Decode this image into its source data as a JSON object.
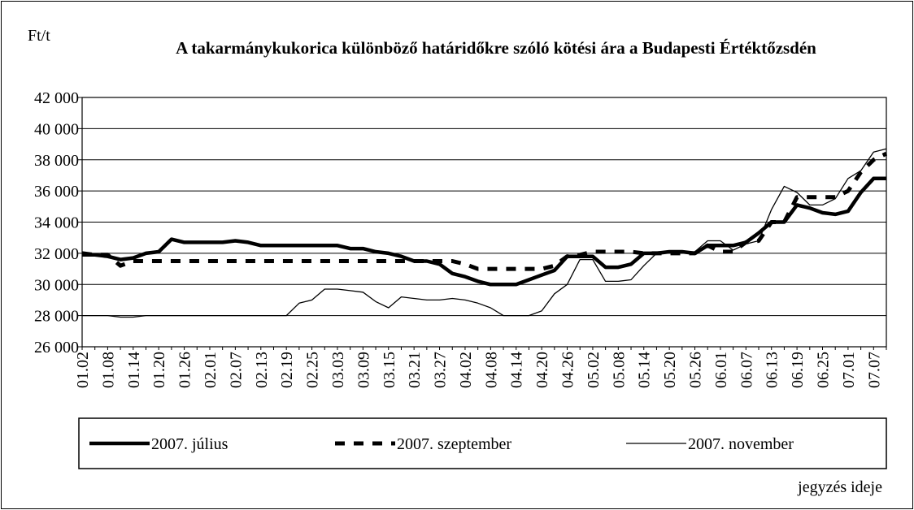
{
  "chart_data": {
    "type": "line",
    "title": "A takarmánykukorica különböző határidőkre szóló kötési ára a Budapesti Értéktőzsdén",
    "y_label": "Ft/t",
    "x_label": "jegyzés ideje",
    "categories": [
      "01.02",
      null,
      "01.08",
      null,
      "01.14",
      null,
      "01.20",
      null,
      "01.26",
      null,
      "02.01",
      null,
      "02.07",
      null,
      "02.13",
      null,
      "02.19",
      null,
      "02.25",
      null,
      "03.03",
      null,
      "03.09",
      null,
      "03.15",
      null,
      "03.21",
      null,
      "03.27",
      null,
      "04.02",
      null,
      "04.08",
      null,
      "04.14",
      null,
      "04.20",
      null,
      "04.26",
      null,
      "05.02",
      null,
      "05.08",
      null,
      "05.14",
      null,
      "05.20",
      null,
      "05.26",
      null,
      "06.01",
      null,
      "06.07",
      null,
      "06.13",
      null,
      "06.19",
      null,
      "06.25",
      null,
      "07.01",
      null,
      "07.07",
      null
    ],
    "series": [
      {
        "name": "2007. július",
        "color": "#000000",
        "style": "thick",
        "values": [
          31900,
          31900,
          31800,
          31600,
          31700,
          32000,
          32100,
          32900,
          32700,
          32700,
          32700,
          32700,
          32800,
          32700,
          32500,
          32500,
          32500,
          32500,
          32500,
          32500,
          32500,
          32300,
          32300,
          32100,
          32000,
          31800,
          31500,
          31500,
          31300,
          30700,
          30500,
          30200,
          30000,
          30000,
          30000,
          30300,
          30600,
          30900,
          31800,
          31800,
          31800,
          31100,
          31100,
          31300,
          32000,
          32000,
          32100,
          32100,
          32000,
          32500,
          32500,
          32500,
          32700,
          33300,
          34000,
          34000,
          35100,
          34900,
          34600,
          34500,
          34700,
          35900,
          36800,
          36800
        ]
      },
      {
        "name": "2007. szeptember",
        "color": "#000000",
        "style": "dashed",
        "values": [
          32000,
          31900,
          31900,
          31200,
          31500,
          31500,
          31500,
          31500,
          31500,
          31500,
          31500,
          31500,
          31500,
          31500,
          31500,
          31500,
          31500,
          31500,
          31500,
          31500,
          31500,
          31500,
          31500,
          31500,
          31500,
          31500,
          31500,
          31500,
          31500,
          31500,
          31300,
          31000,
          31000,
          31000,
          31000,
          31000,
          31000,
          31200,
          31800,
          31900,
          32100,
          32100,
          32100,
          32100,
          32000,
          32000,
          32000,
          32000,
          32000,
          32500,
          32100,
          32100,
          32700,
          32800,
          34000,
          34000,
          35600,
          35600,
          35600,
          35600,
          36000,
          37200,
          38000,
          38400
        ]
      },
      {
        "name": "2007. november",
        "color": "#000000",
        "style": "thin",
        "values": [
          28000,
          28000,
          28000,
          27900,
          27900,
          28000,
          28000,
          28000,
          28000,
          28000,
          28000,
          28000,
          28000,
          28000,
          28000,
          28000,
          28000,
          28800,
          29000,
          29700,
          29700,
          29600,
          29500,
          28900,
          28500,
          29200,
          29100,
          29000,
          29000,
          29100,
          29000,
          28800,
          28500,
          28000,
          28000,
          28000,
          28300,
          29400,
          30000,
          31600,
          31600,
          30200,
          30200,
          30300,
          31200,
          32000,
          32100,
          32000,
          32100,
          32800,
          32800,
          32200,
          32600,
          32800,
          34800,
          36300,
          35900,
          35100,
          35100,
          35500,
          36800,
          37300,
          38500,
          38700
        ]
      }
    ],
    "ylim": [
      26000,
      42000
    ],
    "yticks": [
      {
        "value": 26000,
        "label": "26 000"
      },
      {
        "value": 28000,
        "label": "28 000"
      },
      {
        "value": 30000,
        "label": "30 000"
      },
      {
        "value": 32000,
        "label": "32 000"
      },
      {
        "value": 34000,
        "label": "34 000"
      },
      {
        "value": 36000,
        "label": "36 000"
      },
      {
        "value": 38000,
        "label": "38 000"
      },
      {
        "value": 40000,
        "label": "40 000"
      },
      {
        "value": 42000,
        "label": "42 000"
      }
    ],
    "grid": true,
    "legend": "bottom"
  }
}
